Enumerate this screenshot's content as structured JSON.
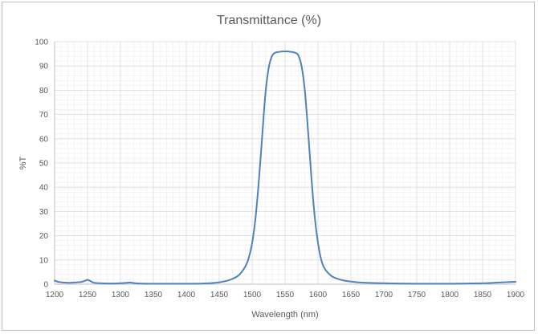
{
  "chart_data": {
    "type": "line",
    "title": "Transmittance (%)",
    "xlabel": "Wavelength (nm)",
    "ylabel": "%T",
    "xlim": [
      1200,
      1900
    ],
    "ylim": [
      0,
      100
    ],
    "x_ticks": [
      1200,
      1250,
      1300,
      1350,
      1400,
      1450,
      1500,
      1550,
      1600,
      1650,
      1700,
      1750,
      1800,
      1850,
      1900
    ],
    "y_ticks": [
      0,
      10,
      20,
      30,
      40,
      50,
      60,
      70,
      80,
      90,
      100
    ],
    "x_minor_step": 10,
    "y_minor_step": 2,
    "grid": true,
    "legend": "none",
    "colors": {
      "line": "#4f81bd",
      "major_grid": "#d9d9d9",
      "minor_grid": "#eeeeee",
      "axis": "#bfbfbf",
      "text": "#595959"
    },
    "series": [
      {
        "x": [
          1200,
          1205,
          1210,
          1220,
          1230,
          1240,
          1245,
          1250,
          1255,
          1260,
          1270,
          1280,
          1290,
          1300,
          1310,
          1315,
          1320,
          1330,
          1350,
          1375,
          1400,
          1425,
          1440,
          1450,
          1460,
          1470,
          1480,
          1490,
          1495,
          1500,
          1505,
          1510,
          1515,
          1520,
          1525,
          1530,
          1535,
          1540,
          1545,
          1550,
          1555,
          1560,
          1565,
          1570,
          1575,
          1580,
          1585,
          1590,
          1595,
          1600,
          1605,
          1610,
          1620,
          1630,
          1640,
          1650,
          1660,
          1675,
          1700,
          1725,
          1750,
          1775,
          1800,
          1825,
          1850,
          1875,
          1900
        ],
        "values": [
          1.5,
          1.0,
          0.8,
          0.6,
          0.7,
          0.9,
          1.3,
          1.8,
          1.2,
          0.6,
          0.4,
          0.3,
          0.3,
          0.4,
          0.6,
          0.7,
          0.5,
          0.3,
          0.2,
          0.2,
          0.2,
          0.3,
          0.5,
          0.8,
          1.3,
          2.2,
          3.8,
          7.5,
          11,
          17,
          27,
          42,
          60,
          78,
          89,
          94,
          95.5,
          95.8,
          96,
          96,
          96,
          95.8,
          95.5,
          94.5,
          90,
          80,
          63,
          44,
          28,
          17,
          10,
          6.5,
          3.5,
          2.2,
          1.5,
          1.1,
          0.8,
          0.6,
          0.4,
          0.3,
          0.2,
          0.2,
          0.2,
          0.3,
          0.4,
          0.7,
          1.0
        ]
      }
    ]
  }
}
